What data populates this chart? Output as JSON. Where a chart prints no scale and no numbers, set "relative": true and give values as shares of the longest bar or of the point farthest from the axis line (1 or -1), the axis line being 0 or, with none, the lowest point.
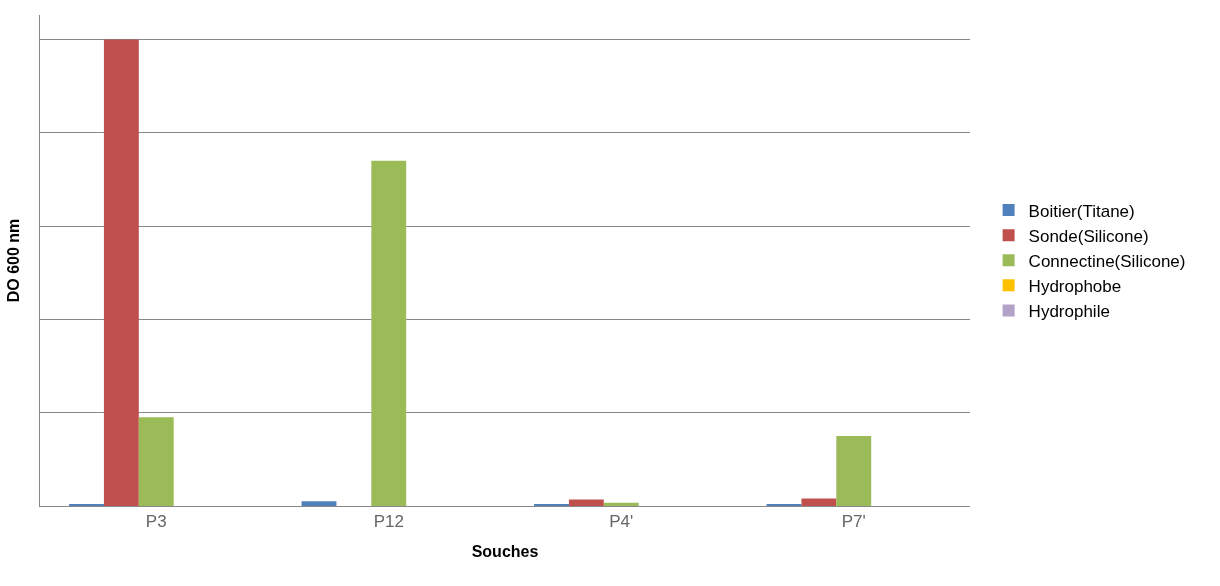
{
  "chart_data": {
    "type": "bar",
    "relative": true,
    "xlabel": "Souches",
    "ylabel": "DO 600 nm",
    "categories": [
      "P3",
      "P12",
      "P4'",
      "P7'"
    ],
    "series": [
      {
        "name": "Boitier(Titane)",
        "color": "#4f81bd",
        "values": [
          0.003,
          0.01,
          0.003,
          0.003
        ]
      },
      {
        "name": "Sonde(Silicone)",
        "color": "#c0504d",
        "values": [
          1.0,
          null,
          0.014,
          0.016
        ]
      },
      {
        "name": "Connectine(Silicone)",
        "color": "#9bbb59",
        "values": [
          0.19,
          0.74,
          0.007,
          0.15
        ]
      },
      {
        "name": "Hydrophobe",
        "color": "#ffc000",
        "values": [
          null,
          null,
          null,
          null
        ]
      },
      {
        "name": "Hydrophile",
        "color": "#b3a2c7",
        "values": [
          null,
          null,
          null,
          null
        ]
      }
    ],
    "grid": "y",
    "legend": "right"
  }
}
